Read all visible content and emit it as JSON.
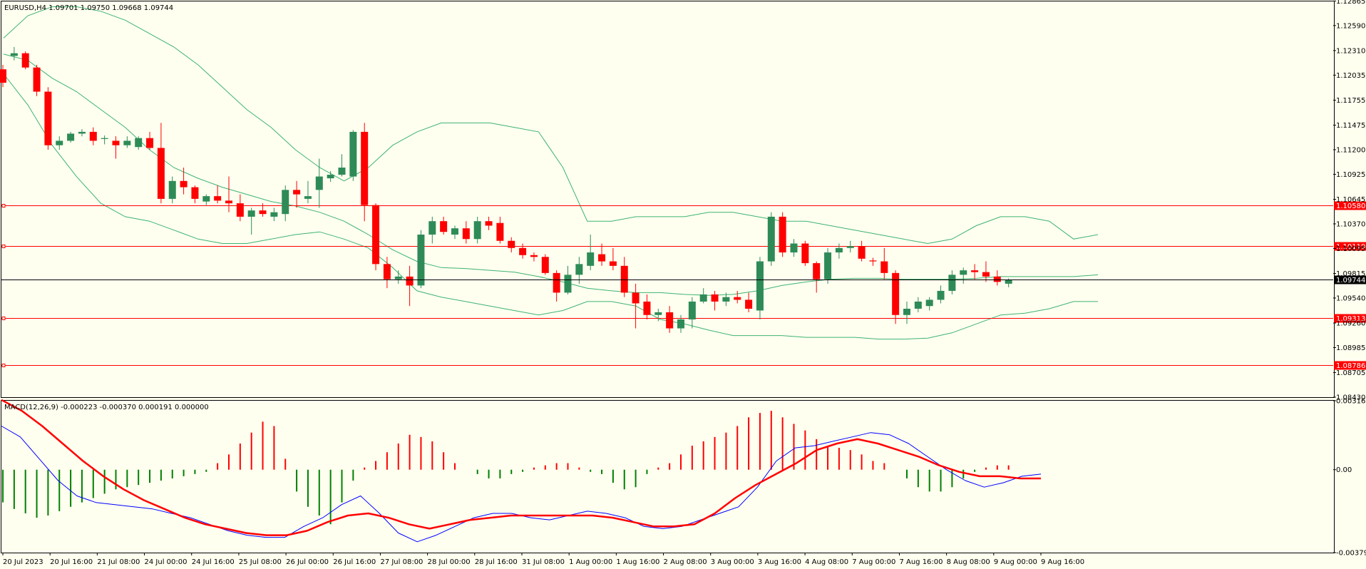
{
  "main_header": "EURUSD,H4  1.09701 1.09750 1.09668 1.09744",
  "macd_header": "MACD(12,26,9) -0.000223 -0.000370 0.000191 0.000000",
  "colors": {
    "background": "#fffff0",
    "bull": "#2e8b57",
    "bear": "#ff0000",
    "band": "#3cb371",
    "hline": "#ff0000",
    "price_line": "#000000",
    "macd_line": "#0000ff",
    "signal_line": "#ff0000",
    "hist_pos": "#ff0000",
    "hist_neg": "#008000"
  },
  "chart_data": [
    {
      "type": "candlestick",
      "symbol": "EURUSD",
      "timeframe": "H4",
      "ylim": [
        1.0843,
        1.1286
      ],
      "y_ticks": [
        "1.12865",
        "1.12590",
        "1.12310",
        "1.12035",
        "1.11755",
        "1.11475",
        "1.11200",
        "1.10925",
        "1.10645",
        "1.10370",
        "1.10095",
        "1.09815",
        "1.09540",
        "1.09260",
        "1.08985",
        "1.08705",
        "1.08430"
      ],
      "x_ticks": [
        "20 Jul 2023",
        "20 Jul 16:00",
        "21 Jul 08:00",
        "24 Jul 00:00",
        "24 Jul 16:00",
        "25 Jul 08:00",
        "26 Jul 00:00",
        "26 Jul 16:00",
        "27 Jul 08:00",
        "28 Jul 00:00",
        "28 Jul 16:00",
        "31 Jul 08:00",
        "1 Aug 00:00",
        "1 Aug 16:00",
        "2 Aug 08:00",
        "3 Aug 00:00",
        "3 Aug 16:00",
        "4 Aug 08:00",
        "7 Aug 00:00",
        "7 Aug 16:00",
        "8 Aug 08:00",
        "9 Aug 00:00",
        "9 Aug 16:00"
      ],
      "current_price": "1.09744",
      "levels": [
        "1.10580",
        "1.10119",
        "1.09313",
        "1.08786"
      ],
      "ohlc": [
        [
          1.121,
          1.1215,
          1.119,
          1.1195
        ],
        [
          1.1225,
          1.1235,
          1.122,
          1.1228
        ],
        [
          1.1228,
          1.123,
          1.121,
          1.1212
        ],
        [
          1.1212,
          1.1215,
          1.118,
          1.1185
        ],
        [
          1.1185,
          1.119,
          1.112,
          1.1125
        ],
        [
          1.1125,
          1.1135,
          1.112,
          1.113
        ],
        [
          1.113,
          1.114,
          1.1128,
          1.1138
        ],
        [
          1.1138,
          1.1143,
          1.1135,
          1.114
        ],
        [
          1.114,
          1.1145,
          1.1125,
          1.113
        ],
        [
          1.1132,
          1.1136,
          1.1126,
          1.1133
        ],
        [
          1.113,
          1.1135,
          1.111,
          1.1125
        ],
        [
          1.1125,
          1.1135,
          1.1122,
          1.113
        ],
        [
          1.1123,
          1.1135,
          1.112,
          1.1133
        ],
        [
          1.1133,
          1.114,
          1.112,
          1.1122
        ],
        [
          1.1122,
          1.115,
          1.106,
          1.1065
        ],
        [
          1.1065,
          1.109,
          1.106,
          1.1085
        ],
        [
          1.1085,
          1.11,
          1.107,
          1.1078
        ],
        [
          1.1078,
          1.108,
          1.106,
          1.1065
        ],
        [
          1.1062,
          1.107,
          1.1058,
          1.1068
        ],
        [
          1.1068,
          1.108,
          1.106,
          1.1063
        ],
        [
          1.1063,
          1.109,
          1.105,
          1.106
        ],
        [
          1.106,
          1.107,
          1.104,
          1.1045
        ],
        [
          1.1045,
          1.1055,
          1.1025,
          1.1052
        ],
        [
          1.1052,
          1.106,
          1.1045,
          1.1048
        ],
        [
          1.1045,
          1.1055,
          1.104,
          1.105
        ],
        [
          1.1048,
          1.108,
          1.104,
          1.1075
        ],
        [
          1.1075,
          1.1085,
          1.1055,
          1.107
        ],
        [
          1.1065,
          1.1085,
          1.106,
          1.1068
        ],
        [
          1.1075,
          1.111,
          1.1055,
          1.109
        ],
        [
          1.1088,
          1.1096,
          1.1084,
          1.1092
        ],
        [
          1.1092,
          1.1115,
          1.109,
          1.11
        ],
        [
          1.109,
          1.1142,
          1.1085,
          1.114
        ],
        [
          1.114,
          1.115,
          1.104,
          1.1058
        ],
        [
          1.1058,
          1.106,
          1.0985,
          1.0992
        ],
        [
          1.0992,
          1.1,
          1.0965,
          1.0975
        ],
        [
          1.0975,
          1.0985,
          1.097,
          1.0978
        ],
        [
          1.0978,
          1.099,
          1.0945,
          1.0968
        ],
        [
          1.0968,
          1.103,
          1.0965,
          1.1025
        ],
        [
          1.1025,
          1.1045,
          1.1015,
          1.104
        ],
        [
          1.104,
          1.1045,
          1.1025,
          1.1028
        ],
        [
          1.1025,
          1.1035,
          1.102,
          1.1032
        ],
        [
          1.1032,
          1.104,
          1.1015,
          1.102
        ],
        [
          1.102,
          1.1045,
          1.1015,
          1.104
        ],
        [
          1.104,
          1.1045,
          1.103,
          1.1035
        ],
        [
          1.1038,
          1.1045,
          1.1015,
          1.1018
        ],
        [
          1.1018,
          1.1022,
          1.1005,
          1.101
        ],
        [
          1.101,
          1.1015,
          1.0998,
          1.1002
        ],
        [
          1.1002,
          1.1005,
          1.0995,
          1.1
        ],
        [
          1.1,
          1.1003,
          1.098,
          1.0982
        ],
        [
          1.0982,
          1.0985,
          1.095,
          1.096
        ],
        [
          1.096,
          1.099,
          1.0958,
          1.098
        ],
        [
          1.098,
          1.1,
          1.097,
          1.0992
        ],
        [
          1.099,
          1.1025,
          1.0985,
          1.1005
        ],
        [
          1.1003,
          1.1015,
          1.099,
          1.0995
        ],
        [
          1.0995,
          1.101,
          1.0985,
          1.099
        ],
        [
          1.099,
          1.1,
          1.0955,
          1.096
        ],
        [
          1.096,
          1.097,
          1.092,
          1.0948
        ],
        [
          1.095,
          1.0958,
          1.093,
          1.0935
        ],
        [
          1.0935,
          1.0942,
          1.0928,
          1.0938
        ],
        [
          1.0938,
          1.0945,
          1.0915,
          1.092
        ],
        [
          1.092,
          1.0935,
          1.0915,
          1.093
        ],
        [
          1.093,
          1.0955,
          1.092,
          1.095
        ],
        [
          1.095,
          1.0965,
          1.0948,
          1.0958
        ],
        [
          1.0958,
          1.0962,
          1.094,
          1.095
        ],
        [
          1.095,
          1.096,
          1.0945,
          1.0955
        ],
        [
          1.0955,
          1.0962,
          1.0948,
          1.0952
        ],
        [
          1.0952,
          1.096,
          1.0938,
          1.0942
        ],
        [
          1.094,
          1.1,
          1.093,
          1.0995
        ],
        [
          1.0995,
          1.105,
          1.099,
          1.1045
        ],
        [
          1.1045,
          1.105,
          1.1,
          1.1005
        ],
        [
          1.1005,
          1.102,
          1.1,
          1.1015
        ],
        [
          1.1015,
          1.1018,
          1.099,
          1.0993
        ],
        [
          1.0993,
          1.0995,
          1.096,
          1.0975
        ],
        [
          1.0975,
          1.101,
          1.097,
          1.1005
        ],
        [
          1.1005,
          1.1015,
          1.0998,
          1.101
        ],
        [
          1.101,
          1.1018,
          1.1005,
          1.1012
        ],
        [
          1.1012,
          1.1018,
          1.0995,
          1.0998
        ],
        [
          1.0996,
          1.0999,
          1.099,
          1.0995
        ],
        [
          1.0995,
          1.101,
          1.0975,
          1.0982
        ],
        [
          1.0982,
          1.0985,
          1.0925,
          1.0935
        ],
        [
          1.0935,
          1.095,
          1.0925,
          1.0942
        ],
        [
          1.0942,
          1.0955,
          1.0938,
          1.095
        ],
        [
          1.0945,
          1.0955,
          1.094,
          1.0952
        ],
        [
          1.0952,
          1.0968,
          1.0948,
          1.0962
        ],
        [
          1.0962,
          1.0985,
          1.0958,
          1.098
        ],
        [
          1.098,
          1.0988,
          1.097,
          1.0985
        ],
        [
          1.0985,
          1.0992,
          1.0975,
          1.0983
        ],
        [
          1.0983,
          1.0995,
          1.0972,
          1.0978
        ],
        [
          1.0978,
          1.0985,
          1.0968,
          1.0972
        ],
        [
          1.097,
          1.0976,
          1.0966,
          1.0974
        ]
      ],
      "bands": {
        "upper": [
          1.1245,
          1.127,
          1.128,
          1.128,
          1.1275,
          1.1265,
          1.125,
          1.1235,
          1.1215,
          1.119,
          1.1165,
          1.1145,
          1.112,
          1.11,
          1.1085,
          1.11,
          1.1125,
          1.114,
          1.115,
          1.115,
          1.115,
          1.1145,
          1.114,
          1.11,
          1.104,
          1.104,
          1.1045,
          1.1045,
          1.1045,
          1.105,
          1.105,
          1.1045,
          1.104,
          1.104,
          1.1035,
          1.103,
          1.1025,
          1.102,
          1.1015,
          1.102,
          1.1035,
          1.1045,
          1.1045,
          1.104,
          1.102,
          1.1025
        ],
        "middle": [
          1.1227,
          1.122,
          1.12,
          1.1185,
          1.1165,
          1.1145,
          1.112,
          1.11,
          1.1088,
          1.1078,
          1.107,
          1.1062,
          1.1057,
          1.105,
          1.104,
          1.1025,
          1.1008,
          1.0995,
          1.0988,
          1.0987,
          1.0985,
          1.0983,
          1.0978,
          1.0972,
          1.0965,
          1.0962,
          1.096,
          1.096,
          1.0958,
          1.0957,
          1.0958,
          1.0962,
          1.0968,
          1.0972,
          1.0975,
          1.0976,
          1.0976,
          1.0975,
          1.0975,
          1.0975,
          1.0976,
          1.0978,
          1.0978,
          1.0978,
          1.0978,
          1.098
        ],
        "lower": [
          1.1205,
          1.117,
          1.1125,
          1.109,
          1.106,
          1.1045,
          1.104,
          1.103,
          1.102,
          1.1015,
          1.1015,
          1.102,
          1.1025,
          1.1028,
          1.102,
          1.101,
          1.0988,
          1.0962,
          1.0955,
          1.095,
          1.0945,
          1.094,
          1.0935,
          1.094,
          1.095,
          1.095,
          1.0945,
          1.093,
          1.0925,
          1.0918,
          1.0912,
          1.0912,
          1.0912,
          1.091,
          1.091,
          1.091,
          1.0908,
          1.0908,
          1.0909,
          1.0915,
          1.0925,
          1.0935,
          1.0937,
          1.0942,
          1.095,
          1.095
        ]
      }
    },
    {
      "type": "macd",
      "params": "12,26,9",
      "y_ticks": [
        "0.00316",
        "0.00",
        "-0.003798"
      ],
      "ylim": [
        -0.003798,
        0.00316
      ],
      "histogram": [
        -0.0015,
        -0.0018,
        -0.002,
        -0.0022,
        -0.0021,
        -0.0019,
        -0.0017,
        -0.0015,
        -0.0013,
        -0.0011,
        -0.0009,
        -0.0008,
        -0.0007,
        -0.0006,
        -0.0005,
        -0.0004,
        -0.0003,
        -0.0002,
        -0.0001,
        0.0003,
        0.0007,
        0.0012,
        0.0017,
        0.0022,
        0.002,
        0.0005,
        -0.001,
        -0.0017,
        -0.0021,
        -0.0025,
        -0.0015,
        -0.0005,
        0.0001,
        0.0004,
        0.0008,
        0.0012,
        0.0016,
        0.0015,
        0.0013,
        0.0008,
        0.0003,
        0.0,
        -0.0002,
        -0.0004,
        -0.0004,
        -0.0002,
        -0.0001,
        0.0001,
        0.0002,
        0.0003,
        0.0003,
        0.0001,
        -0.0001,
        -0.0002,
        -0.0006,
        -0.0009,
        -0.0008,
        -0.0002,
        0.0001,
        0.0003,
        0.0007,
        0.0011,
        0.0013,
        0.0015,
        0.0017,
        0.002,
        0.0024,
        0.0026,
        0.0027,
        0.0024,
        0.0021,
        0.0018,
        0.0014,
        0.0011,
        0.001,
        0.0009,
        0.0007,
        0.0004,
        0.0003,
        0.0,
        -0.0004,
        -0.0008,
        -0.001,
        -0.001,
        -0.0008,
        -0.0004,
        -0.0001,
        0.0001,
        0.0002,
        0.0002
      ],
      "macd": [
        0.002,
        0.0015,
        0.0005,
        -0.0005,
        -0.0012,
        -0.0015,
        -0.0016,
        -0.0017,
        -0.0018,
        -0.002,
        -0.0022,
        -0.0025,
        -0.0028,
        -0.003,
        -0.0031,
        -0.0031,
        -0.0026,
        -0.0022,
        -0.0016,
        -0.0012,
        -0.002,
        -0.0029,
        -0.0033,
        -0.003,
        -0.0026,
        -0.0022,
        -0.002,
        -0.002,
        -0.0022,
        -0.0023,
        -0.0021,
        -0.0019,
        -0.002,
        -0.0022,
        -0.0026,
        -0.0027,
        -0.0026,
        -0.0023,
        -0.002,
        -0.0017,
        -0.0008,
        0.0004,
        0.001,
        0.0011,
        0.0013,
        0.0015,
        0.0017,
        0.0016,
        0.0012,
        0.0006,
        0.0,
        -0.0005,
        -0.0008,
        -0.0006,
        -0.0003,
        -0.0002
      ],
      "signal": [
        0.0032,
        0.0027,
        0.002,
        0.0012,
        0.0004,
        -0.0003,
        -0.0009,
        -0.0014,
        -0.0018,
        -0.0022,
        -0.0025,
        -0.0027,
        -0.0029,
        -0.003,
        -0.003,
        -0.0028,
        -0.0024,
        -0.0021,
        -0.002,
        -0.0022,
        -0.0025,
        -0.0027,
        -0.0025,
        -0.0023,
        -0.0022,
        -0.0021,
        -0.0021,
        -0.0021,
        -0.0021,
        -0.0021,
        -0.0022,
        -0.0024,
        -0.0026,
        -0.0026,
        -0.0025,
        -0.002,
        -0.0013,
        -0.0007,
        -0.0002,
        0.0003,
        0.0009,
        0.0012,
        0.0014,
        0.0012,
        0.0009,
        0.0006,
        0.0002,
        -0.0001,
        -0.0003,
        -0.0003,
        -0.0004,
        -0.0004
      ]
    }
  ]
}
